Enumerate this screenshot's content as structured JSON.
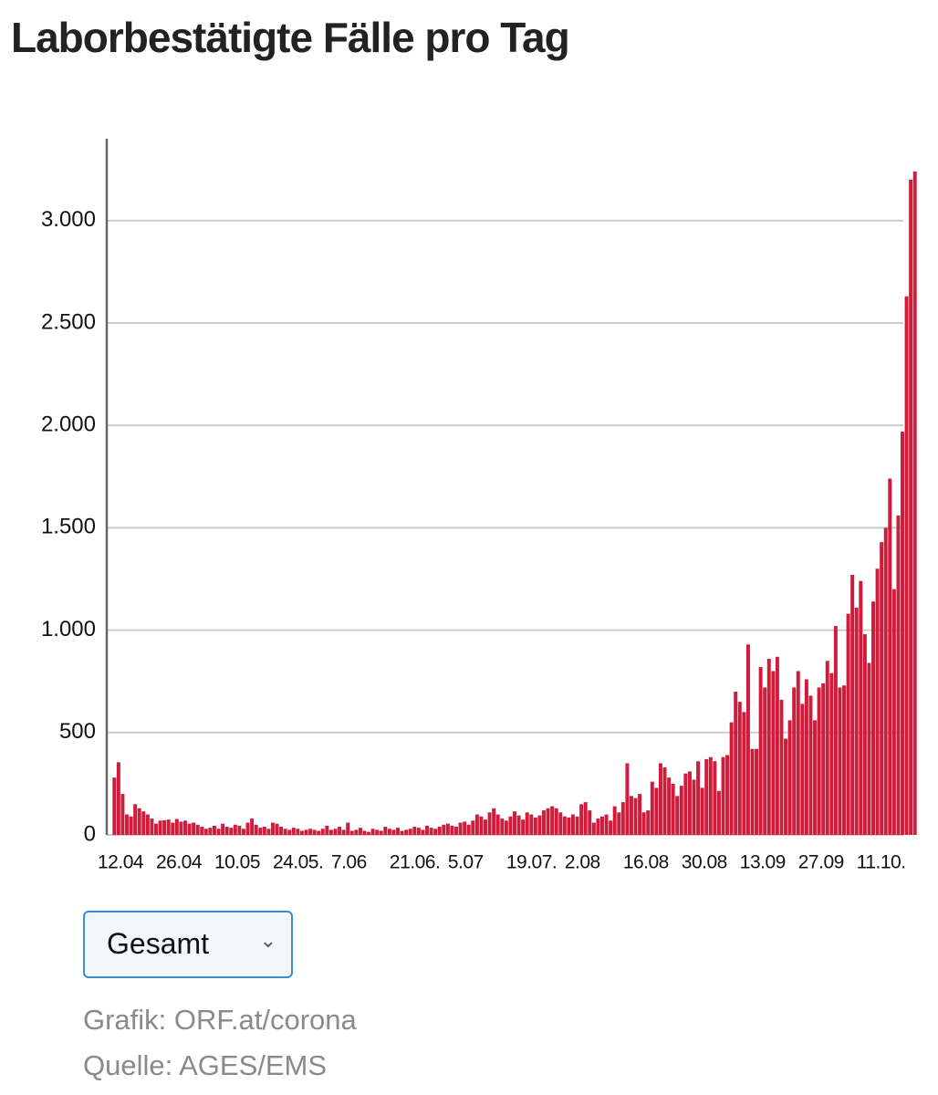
{
  "chart_data": {
    "type": "bar",
    "title": "Laborbestätigte Fälle pro Tag",
    "categories": [
      "12.04",
      null,
      null,
      null,
      null,
      null,
      null,
      null,
      null,
      null,
      null,
      null,
      null,
      null,
      "26.04",
      null,
      null,
      null,
      null,
      null,
      null,
      null,
      null,
      null,
      null,
      null,
      null,
      null,
      "10.05",
      null,
      null,
      null,
      null,
      null,
      null,
      null,
      null,
      null,
      null,
      null,
      null,
      null,
      "24.05.",
      null,
      null,
      null,
      null,
      null,
      null,
      null,
      null,
      null,
      null,
      null,
      null,
      null,
      "7.06",
      null,
      null,
      null,
      null,
      null,
      null,
      null,
      null,
      null,
      null,
      null,
      null,
      null,
      "21.06.",
      null,
      null,
      null,
      null,
      null,
      null,
      null,
      null,
      null,
      null,
      null,
      null,
      null,
      "5.07",
      null,
      null,
      null,
      null,
      null,
      null,
      null,
      null,
      null,
      null,
      null,
      null,
      null,
      "19.07.",
      null,
      null,
      null,
      null,
      null,
      null,
      null,
      null,
      null,
      null,
      null,
      null,
      null,
      "2.08",
      null,
      null,
      null,
      null,
      null,
      null,
      null,
      null,
      null,
      null,
      null,
      null,
      null,
      "16.08",
      null,
      null,
      null,
      null,
      null,
      null,
      null,
      null,
      null,
      null,
      null,
      null,
      null,
      "30.08",
      null,
      null,
      null,
      null,
      null,
      null,
      null,
      null,
      null,
      null,
      null,
      null,
      null,
      "13.09",
      null,
      null,
      null,
      null,
      null,
      null,
      null,
      null,
      null,
      null,
      null,
      null,
      null,
      "27.09",
      null,
      null,
      null,
      null,
      null,
      null,
      null,
      null,
      null,
      null,
      null,
      null,
      null,
      "11.10.",
      null,
      null,
      null,
      null,
      null,
      null,
      null,
      null,
      null,
      null
    ],
    "values": [
      280,
      355,
      200,
      100,
      90,
      150,
      130,
      115,
      100,
      80,
      55,
      70,
      72,
      75,
      60,
      78,
      65,
      70,
      55,
      60,
      50,
      40,
      30,
      35,
      45,
      30,
      55,
      40,
      35,
      50,
      45,
      30,
      60,
      80,
      50,
      35,
      40,
      30,
      60,
      55,
      40,
      30,
      25,
      35,
      30,
      20,
      25,
      30,
      25,
      20,
      30,
      45,
      25,
      30,
      40,
      25,
      60,
      20,
      25,
      35,
      20,
      15,
      30,
      25,
      20,
      40,
      30,
      25,
      35,
      20,
      25,
      30,
      40,
      35,
      25,
      45,
      35,
      30,
      40,
      50,
      55,
      45,
      40,
      60,
      65,
      50,
      70,
      100,
      90,
      75,
      110,
      130,
      100,
      80,
      70,
      90,
      115,
      95,
      75,
      110,
      100,
      85,
      95,
      120,
      130,
      140,
      130,
      110,
      90,
      85,
      100,
      90,
      150,
      160,
      120,
      60,
      80,
      90,
      100,
      70,
      140,
      110,
      160,
      350,
      190,
      180,
      200,
      110,
      120,
      260,
      230,
      350,
      330,
      280,
      250,
      190,
      240,
      300,
      310,
      270,
      360,
      230,
      370,
      380,
      360,
      215,
      380,
      390,
      550,
      700,
      650,
      600,
      930,
      420,
      420,
      820,
      720,
      860,
      800,
      870,
      660,
      470,
      560,
      720,
      800,
      640,
      760,
      680,
      560,
      720,
      740,
      850,
      790,
      1020,
      720,
      730,
      1080,
      1270,
      1110,
      1240,
      980,
      840,
      1140,
      1300,
      1430,
      1500,
      1740,
      1200,
      1560,
      1970,
      2630,
      3200,
      3240
    ],
    "color": "#d01c3a",
    "ylim": [
      0,
      3400
    ],
    "yticks": [
      0,
      500,
      {
        "value": 1000,
        "label": "1.000"
      },
      {
        "value": 1500,
        "label": "1.500"
      },
      {
        "value": 2000,
        "label": "2.000"
      },
      {
        "value": 2500,
        "label": "2.500"
      },
      {
        "value": 3000,
        "label": "3.000"
      }
    ],
    "grid": true
  },
  "controls": {
    "select": "Gesamt"
  },
  "footer": {
    "credit": "Grafik: ORF.at/corona",
    "source": "Quelle: AGES/EMS"
  }
}
